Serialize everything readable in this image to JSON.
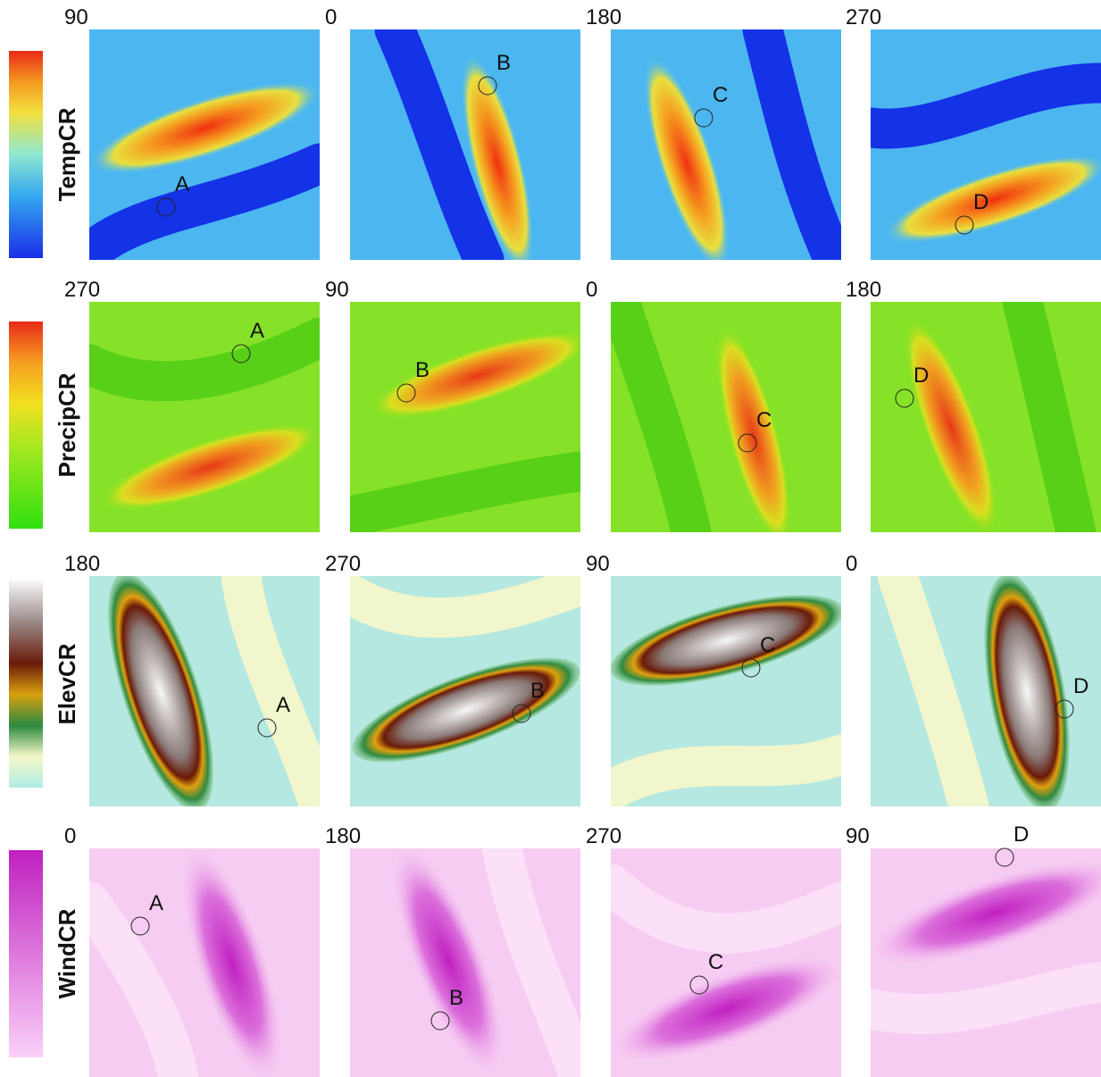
{
  "rows": [
    {
      "label": "TempCR",
      "panels": [
        {
          "angle": "90",
          "point": "A"
        },
        {
          "angle": "0",
          "point": "B"
        },
        {
          "angle": "180",
          "point": "C"
        },
        {
          "angle": "270",
          "point": "D"
        }
      ]
    },
    {
      "label": "PrecipCR",
      "panels": [
        {
          "angle": "270",
          "point": "A"
        },
        {
          "angle": "90",
          "point": "B"
        },
        {
          "angle": "0",
          "point": "C"
        },
        {
          "angle": "180",
          "point": "D"
        }
      ]
    },
    {
      "label": "ElevCR",
      "panels": [
        {
          "angle": "180",
          "point": "A"
        },
        {
          "angle": "270",
          "point": "B"
        },
        {
          "angle": "90",
          "point": "C"
        },
        {
          "angle": "0",
          "point": "D"
        }
      ]
    },
    {
      "label": "WindCR",
      "panels": [
        {
          "angle": "0",
          "point": "A"
        },
        {
          "angle": "180",
          "point": "B"
        },
        {
          "angle": "270",
          "point": "C"
        },
        {
          "angle": "90",
          "point": "D"
        }
      ]
    }
  ]
}
